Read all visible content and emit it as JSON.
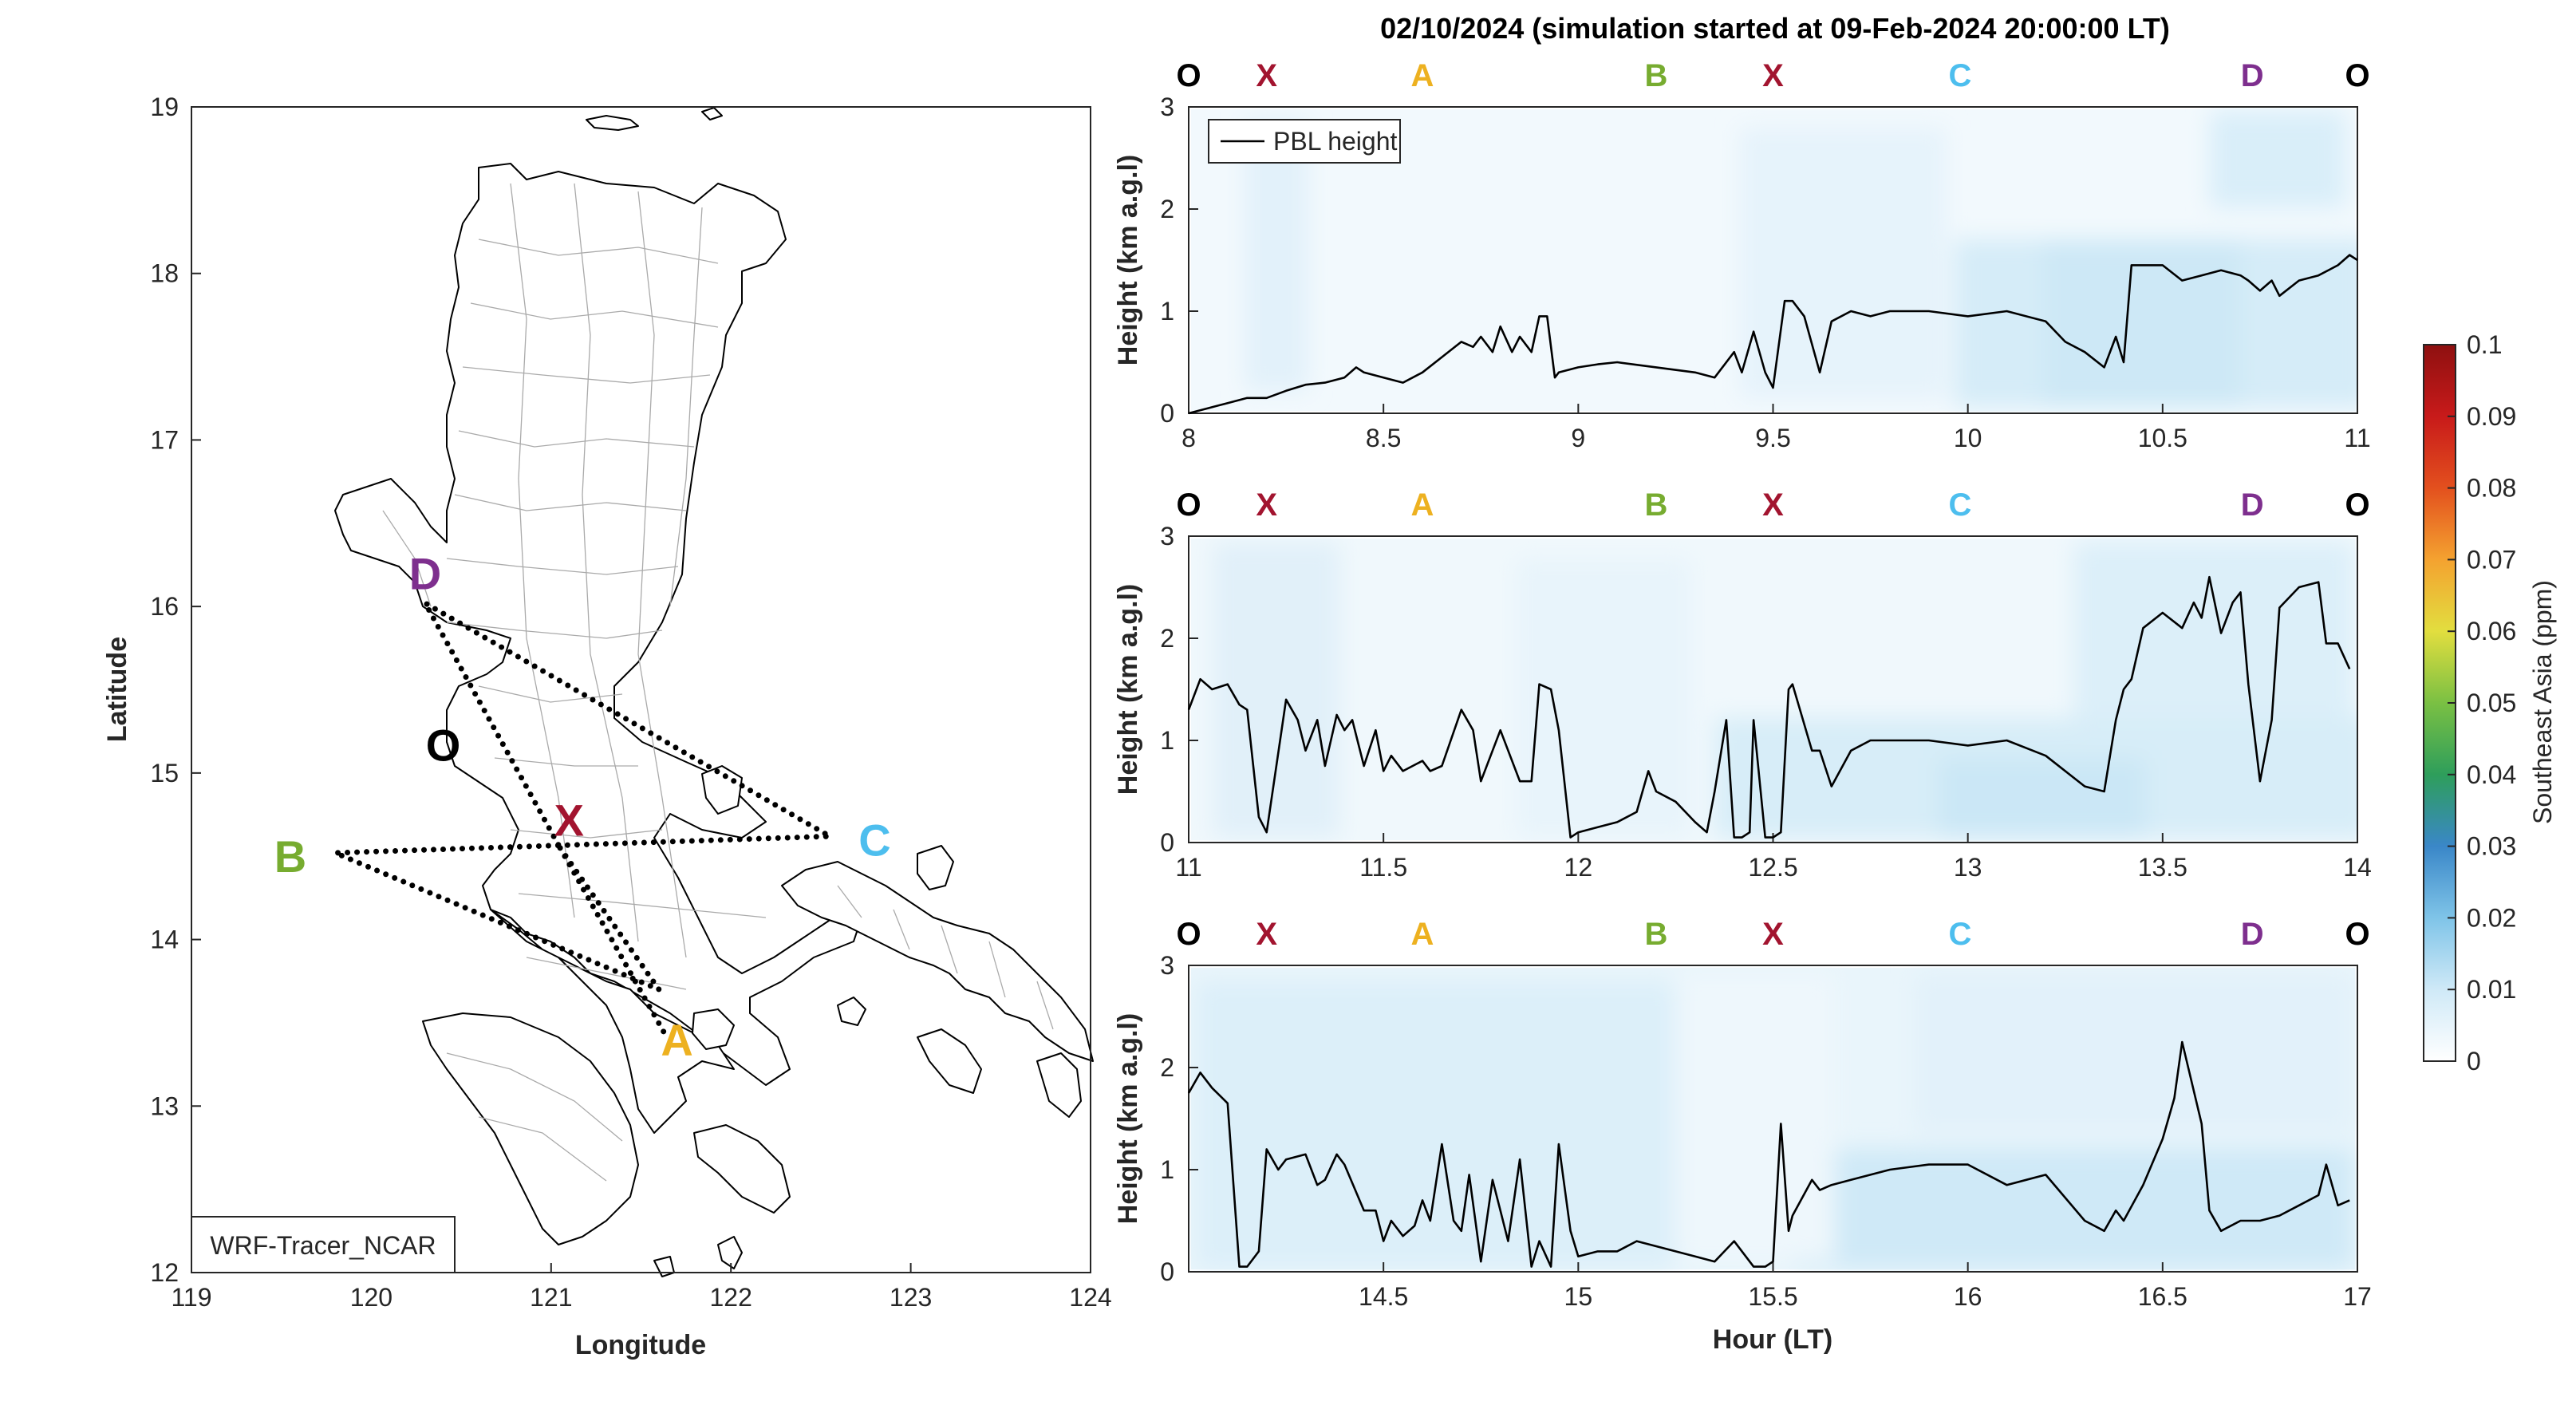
{
  "chart_data": [
    {
      "type": "map",
      "xlabel": "Longitude",
      "ylabel": "Latitude",
      "xlim": [
        119,
        124
      ],
      "ylim": [
        12,
        19
      ],
      "x_ticks": [
        "119",
        "120",
        "121",
        "122",
        "123",
        "124"
      ],
      "y_ticks": [
        "12",
        "13",
        "14",
        "15",
        "16",
        "17",
        "18",
        "19"
      ],
      "model_label": "WRF-Tracer_NCAR",
      "points": [
        {
          "label": "O",
          "lon": 120.4,
          "lat": 15.17,
          "color": "#000000"
        },
        {
          "label": "X",
          "lon": 121.1,
          "lat": 14.72,
          "color": "#A2142F"
        },
        {
          "label": "A",
          "lon": 121.7,
          "lat": 13.4,
          "color": "#EDB120"
        },
        {
          "label": "B",
          "lon": 119.55,
          "lat": 14.5,
          "color": "#77AC30"
        },
        {
          "label": "C",
          "lon": 122.8,
          "lat": 14.6,
          "color": "#4DBEEE"
        },
        {
          "label": "D",
          "lon": 120.3,
          "lat": 16.2,
          "color": "#7E2F8E"
        }
      ],
      "route": [
        {
          "lon": 121.05,
          "lat": 14.55
        },
        {
          "lon": 121.6,
          "lat": 13.7
        },
        {
          "lon": 119.8,
          "lat": 14.52
        },
        {
          "lon": 122.55,
          "lat": 14.62
        },
        {
          "lon": 120.3,
          "lat": 16.02
        },
        {
          "lon": 121.05,
          "lat": 14.55
        }
      ],
      "route_extra": [
        {
          "lon": 121.05,
          "lat": 14.55
        },
        {
          "lon": 121.65,
          "lat": 13.4
        }
      ]
    },
    {
      "type": "line",
      "title": "02/10/2024 (simulation started at 09-Feb-2024 20:00:00 LT)",
      "ylabel": "Height (km a.g.l)",
      "legend": "PBL height",
      "legend_position": "top-left",
      "xlim": [
        8,
        11
      ],
      "ylim": [
        0,
        3
      ],
      "x_ticks": [
        "8",
        "8.5",
        "9",
        "9.5",
        "10",
        "10.5",
        "11"
      ],
      "y_ticks": [
        "0",
        "1",
        "2",
        "3"
      ],
      "segments": [
        {
          "label": "O",
          "x": 8.0,
          "color": "#000000"
        },
        {
          "label": "X",
          "x": 8.2,
          "color": "#A2142F"
        },
        {
          "label": "A",
          "x": 8.6,
          "color": "#EDB120"
        },
        {
          "label": "B",
          "x": 9.2,
          "color": "#77AC30"
        },
        {
          "label": "X",
          "x": 9.5,
          "color": "#A2142F"
        },
        {
          "label": "C",
          "x": 9.98,
          "color": "#4DBEEE"
        },
        {
          "label": "D",
          "x": 10.73,
          "color": "#7E2F8E"
        },
        {
          "label": "O",
          "x": 11.0,
          "color": "#000000"
        }
      ],
      "series": [
        {
          "name": "PBL height",
          "x": [
            8.0,
            8.05,
            8.1,
            8.15,
            8.2,
            8.25,
            8.3,
            8.35,
            8.4,
            8.43,
            8.45,
            8.5,
            8.55,
            8.6,
            8.65,
            8.7,
            8.73,
            8.75,
            8.78,
            8.8,
            8.83,
            8.85,
            8.88,
            8.9,
            8.92,
            8.94,
            8.95,
            9.0,
            9.05,
            9.1,
            9.2,
            9.3,
            9.35,
            9.4,
            9.42,
            9.45,
            9.48,
            9.5,
            9.53,
            9.55,
            9.58,
            9.62,
            9.65,
            9.7,
            9.75,
            9.8,
            9.9,
            10.0,
            10.1,
            10.2,
            10.25,
            10.3,
            10.35,
            10.38,
            10.4,
            10.42,
            10.45,
            10.5,
            10.55,
            10.6,
            10.65,
            10.7,
            10.72,
            10.75,
            10.78,
            10.8,
            10.85,
            10.9,
            10.95,
            10.98,
            11.0
          ],
          "y": [
            0.0,
            0.05,
            0.1,
            0.15,
            0.15,
            0.22,
            0.28,
            0.3,
            0.35,
            0.45,
            0.4,
            0.35,
            0.3,
            0.4,
            0.55,
            0.7,
            0.65,
            0.75,
            0.6,
            0.85,
            0.6,
            0.75,
            0.6,
            0.95,
            0.95,
            0.35,
            0.4,
            0.45,
            0.48,
            0.5,
            0.45,
            0.4,
            0.35,
            0.6,
            0.4,
            0.8,
            0.4,
            0.25,
            1.1,
            1.1,
            0.95,
            0.4,
            0.9,
            1.0,
            0.95,
            1.0,
            1.0,
            0.95,
            1.0,
            0.9,
            0.7,
            0.6,
            0.45,
            0.75,
            0.5,
            1.45,
            1.45,
            1.45,
            1.3,
            1.35,
            1.4,
            1.35,
            1.3,
            1.2,
            1.3,
            1.15,
            1.3,
            1.35,
            1.45,
            1.55,
            1.5
          ]
        }
      ]
    },
    {
      "type": "line",
      "ylabel": "Height (km a.g.l)",
      "xlim": [
        11,
        14
      ],
      "ylim": [
        0,
        3
      ],
      "x_ticks": [
        "11",
        "11.5",
        "12",
        "12.5",
        "13",
        "13.5",
        "14"
      ],
      "y_ticks": [
        "0",
        "1",
        "2",
        "3"
      ],
      "segments": [
        {
          "label": "O",
          "x": 11.0,
          "color": "#000000"
        },
        {
          "label": "X",
          "x": 11.2,
          "color": "#A2142F"
        },
        {
          "label": "A",
          "x": 11.6,
          "color": "#EDB120"
        },
        {
          "label": "B",
          "x": 12.2,
          "color": "#77AC30"
        },
        {
          "label": "X",
          "x": 12.5,
          "color": "#A2142F"
        },
        {
          "label": "C",
          "x": 12.98,
          "color": "#4DBEEE"
        },
        {
          "label": "D",
          "x": 13.73,
          "color": "#7E2F8E"
        },
        {
          "label": "O",
          "x": 14.0,
          "color": "#000000"
        }
      ],
      "series": [
        {
          "name": "PBL height",
          "x": [
            11.0,
            11.03,
            11.06,
            11.1,
            11.13,
            11.15,
            11.18,
            11.2,
            11.25,
            11.28,
            11.3,
            11.33,
            11.35,
            11.38,
            11.4,
            11.42,
            11.45,
            11.48,
            11.5,
            11.52,
            11.55,
            11.6,
            11.62,
            11.65,
            11.7,
            11.73,
            11.75,
            11.8,
            11.85,
            11.88,
            11.9,
            11.93,
            11.95,
            11.98,
            12.0,
            12.05,
            12.1,
            12.15,
            12.18,
            12.2,
            12.25,
            12.3,
            12.33,
            12.35,
            12.38,
            12.4,
            12.42,
            12.44,
            12.45,
            12.48,
            12.5,
            12.52,
            12.54,
            12.55,
            12.6,
            12.62,
            12.65,
            12.7,
            12.75,
            12.8,
            12.9,
            13.0,
            13.1,
            13.2,
            13.3,
            13.35,
            13.38,
            13.4,
            13.42,
            13.45,
            13.5,
            13.55,
            13.58,
            13.6,
            13.62,
            13.65,
            13.68,
            13.7,
            13.72,
            13.75,
            13.78,
            13.8,
            13.85,
            13.9,
            13.92,
            13.95,
            13.98
          ],
          "y": [
            1.3,
            1.6,
            1.5,
            1.55,
            1.35,
            1.3,
            0.25,
            0.1,
            1.4,
            1.2,
            0.9,
            1.2,
            0.75,
            1.25,
            1.1,
            1.2,
            0.75,
            1.1,
            0.7,
            0.85,
            0.7,
            0.8,
            0.7,
            0.75,
            1.3,
            1.1,
            0.6,
            1.1,
            0.6,
            0.6,
            1.55,
            1.5,
            1.1,
            0.05,
            0.1,
            0.15,
            0.2,
            0.3,
            0.7,
            0.5,
            0.4,
            0.2,
            0.1,
            0.5,
            1.2,
            0.05,
            0.05,
            0.1,
            1.2,
            0.05,
            0.05,
            0.1,
            1.5,
            1.55,
            0.9,
            0.9,
            0.55,
            0.9,
            1.0,
            1.0,
            1.0,
            0.95,
            1.0,
            0.85,
            0.55,
            0.5,
            1.2,
            1.5,
            1.6,
            2.1,
            2.25,
            2.1,
            2.35,
            2.2,
            2.6,
            2.05,
            2.35,
            2.45,
            1.55,
            0.6,
            1.2,
            2.3,
            2.5,
            2.55,
            1.95,
            1.95,
            1.7
          ]
        }
      ]
    },
    {
      "type": "line",
      "xlabel": "Hour (LT)",
      "ylabel": "Height (km a.g.l)",
      "xlim": [
        14,
        17
      ],
      "ylim": [
        0,
        3
      ],
      "x_ticks": [
        "14.5",
        "15",
        "15.5",
        "16",
        "16.5",
        "17"
      ],
      "y_ticks": [
        "0",
        "1",
        "2",
        "3"
      ],
      "segments": [
        {
          "label": "O",
          "x": 14.0,
          "color": "#000000"
        },
        {
          "label": "X",
          "x": 14.2,
          "color": "#A2142F"
        },
        {
          "label": "A",
          "x": 14.6,
          "color": "#EDB120"
        },
        {
          "label": "B",
          "x": 15.2,
          "color": "#77AC30"
        },
        {
          "label": "X",
          "x": 15.5,
          "color": "#A2142F"
        },
        {
          "label": "C",
          "x": 15.98,
          "color": "#4DBEEE"
        },
        {
          "label": "D",
          "x": 16.73,
          "color": "#7E2F8E"
        },
        {
          "label": "O",
          "x": 17.0,
          "color": "#000000"
        }
      ],
      "series": [
        {
          "name": "PBL height",
          "x": [
            14.0,
            14.03,
            14.06,
            14.1,
            14.13,
            14.15,
            14.18,
            14.2,
            14.23,
            14.25,
            14.3,
            14.33,
            14.35,
            14.38,
            14.4,
            14.45,
            14.48,
            14.5,
            14.52,
            14.55,
            14.58,
            14.6,
            14.62,
            14.65,
            14.68,
            14.7,
            14.72,
            14.75,
            14.78,
            14.8,
            14.82,
            14.85,
            14.88,
            14.9,
            14.93,
            14.95,
            14.98,
            15.0,
            15.05,
            15.1,
            15.15,
            15.2,
            15.25,
            15.3,
            15.35,
            15.4,
            15.45,
            15.48,
            15.5,
            15.52,
            15.54,
            15.55,
            15.6,
            15.62,
            15.65,
            15.7,
            15.75,
            15.8,
            15.9,
            16.0,
            16.1,
            16.2,
            16.3,
            16.35,
            16.38,
            16.4,
            16.45,
            16.5,
            16.53,
            16.55,
            16.6,
            16.62,
            16.65,
            16.7,
            16.75,
            16.8,
            16.85,
            16.9,
            16.92,
            16.95,
            16.98
          ],
          "y": [
            1.75,
            1.95,
            1.8,
            1.65,
            0.05,
            0.05,
            0.2,
            1.2,
            1.0,
            1.1,
            1.15,
            0.85,
            0.9,
            1.15,
            1.05,
            0.6,
            0.6,
            0.3,
            0.5,
            0.35,
            0.45,
            0.7,
            0.5,
            1.25,
            0.5,
            0.4,
            0.95,
            0.1,
            0.9,
            0.6,
            0.3,
            1.1,
            0.05,
            0.3,
            0.05,
            1.25,
            0.4,
            0.15,
            0.2,
            0.2,
            0.3,
            0.25,
            0.2,
            0.15,
            0.1,
            0.3,
            0.05,
            0.05,
            0.1,
            1.45,
            0.4,
            0.55,
            0.9,
            0.8,
            0.85,
            0.9,
            0.95,
            1.0,
            1.05,
            1.05,
            0.85,
            0.95,
            0.5,
            0.4,
            0.6,
            0.5,
            0.85,
            1.3,
            1.7,
            2.25,
            1.45,
            0.6,
            0.4,
            0.5,
            0.5,
            0.55,
            0.65,
            0.75,
            1.05,
            0.65,
            0.7
          ]
        }
      ]
    },
    {
      "type": "colorbar",
      "label": "Southeast Asia (ppm)",
      "ticks": [
        "0",
        "0.01",
        "0.02",
        "0.03",
        "0.04",
        "0.05",
        "0.06",
        "0.07",
        "0.08",
        "0.09",
        "0.1"
      ],
      "range": [
        0,
        0.1
      ],
      "colors": [
        "#ffffff",
        "#cfe9f7",
        "#7fc4e8",
        "#3a87c8",
        "#2e9e5b",
        "#7ac043",
        "#e2de3f",
        "#f4a230",
        "#e3501e",
        "#c81a1a",
        "#8e1010"
      ]
    }
  ]
}
